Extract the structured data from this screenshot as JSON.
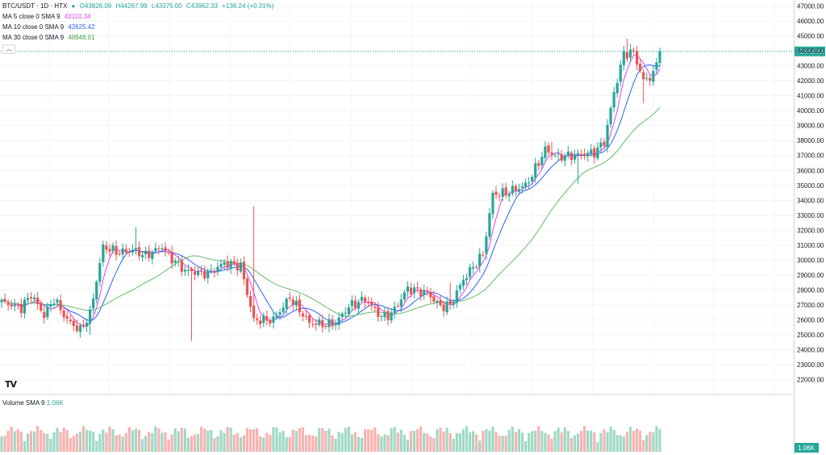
{
  "header": {
    "symbol": "BTC/USDT · 1D · HTX",
    "status_dot_color": "#26a69a",
    "ohlc": {
      "open": "O43826.09",
      "high": "H44267.99",
      "low": "L43375.00",
      "close": "C43962.33",
      "change": "+136.24 (+0.31%)"
    },
    "ohlc_color": "#26a69a"
  },
  "indicators": [
    {
      "label": "MA 5 close 0 SMA 9",
      "value": "43110.34",
      "color": "#e040fb"
    },
    {
      "label": "MA 10 close 0 SMA 9",
      "value": "42625.42",
      "color": "#2962ff"
    },
    {
      "label": "MA 30 close 0 SMA 9",
      "value": "40946.01",
      "color": "#43a047"
    }
  ],
  "collapse_icon": "chevron-up-icon",
  "volume_legend": {
    "label": "Volume SMA 9",
    "value": "1.06K",
    "color": "#26a69a"
  },
  "logo": "TV",
  "colors": {
    "up": "#26a69a",
    "down": "#ef5350",
    "up_volume": "#9fd9c6",
    "down_volume": "#f7b3b0",
    "price_line": "#26a69a"
  },
  "chart_data": {
    "type": "candlestick",
    "y_axis_ticks": [
      "47000.00",
      "46000.00",
      "45000.00",
      "44000.00",
      "43000.00",
      "42000.00",
      "41000.00",
      "40000.00",
      "39000.00",
      "38000.00",
      "37000.00",
      "36000.00",
      "35000.00",
      "34000.00",
      "33000.00",
      "32000.00",
      "31000.00",
      "30000.00",
      "29000.00",
      "28000.00",
      "27000.00",
      "26000.00",
      "25000.00",
      "24000.00",
      "23000.00",
      "22000.00"
    ],
    "ylim": [
      21500,
      47400
    ],
    "current_price_label": "43962.33",
    "current_price": 43962.33,
    "volume_axis_label": "1.06K",
    "grid": true,
    "segments": [
      [
        0,
        27200
      ],
      [
        6,
        26800
      ],
      [
        9,
        27700
      ],
      [
        13,
        26300
      ],
      [
        16,
        27400
      ],
      [
        20,
        26000
      ],
      [
        24,
        25300
      ],
      [
        27,
        26400
      ],
      [
        31,
        30900
      ],
      [
        36,
        30500
      ],
      [
        40,
        30700
      ],
      [
        44,
        30300
      ],
      [
        49,
        30900
      ],
      [
        51,
        30300
      ],
      [
        56,
        29300
      ],
      [
        63,
        29100
      ],
      [
        68,
        29800
      ],
      [
        73,
        29600
      ],
      [
        77,
        26000
      ],
      [
        83,
        26000
      ],
      [
        88,
        27500
      ],
      [
        94,
        25800
      ],
      [
        99,
        25700
      ],
      [
        102,
        25800
      ],
      [
        106,
        26900
      ],
      [
        111,
        27400
      ],
      [
        116,
        26200
      ],
      [
        119,
        26400
      ],
      [
        124,
        28100
      ],
      [
        130,
        27800
      ],
      [
        134,
        26900
      ],
      [
        137,
        27000
      ],
      [
        141,
        28700
      ],
      [
        147,
        30400
      ],
      [
        150,
        34400
      ],
      [
        154,
        34500
      ],
      [
        160,
        35000
      ],
      [
        162,
        35700
      ],
      [
        166,
        37400
      ],
      [
        170,
        36900
      ],
      [
        175,
        37000
      ],
      [
        181,
        37200
      ],
      [
        184,
        37900
      ],
      [
        187,
        41200
      ],
      [
        190,
        43800
      ],
      [
        193,
        43900
      ],
      [
        196,
        42000
      ],
      [
        199,
        42400
      ],
      [
        201,
        43962
      ]
    ],
    "spikes": {
      "27": [
        25000,
        0
      ],
      "41": [
        0,
        32200
      ],
      "58": [
        24600,
        0
      ],
      "77": [
        0,
        33600
      ],
      "137": [
        0,
        28500
      ],
      "168": [
        0,
        37900
      ],
      "176": [
        35100,
        0
      ],
      "191": [
        0,
        44800
      ],
      "196": [
        40500,
        0
      ]
    }
  }
}
